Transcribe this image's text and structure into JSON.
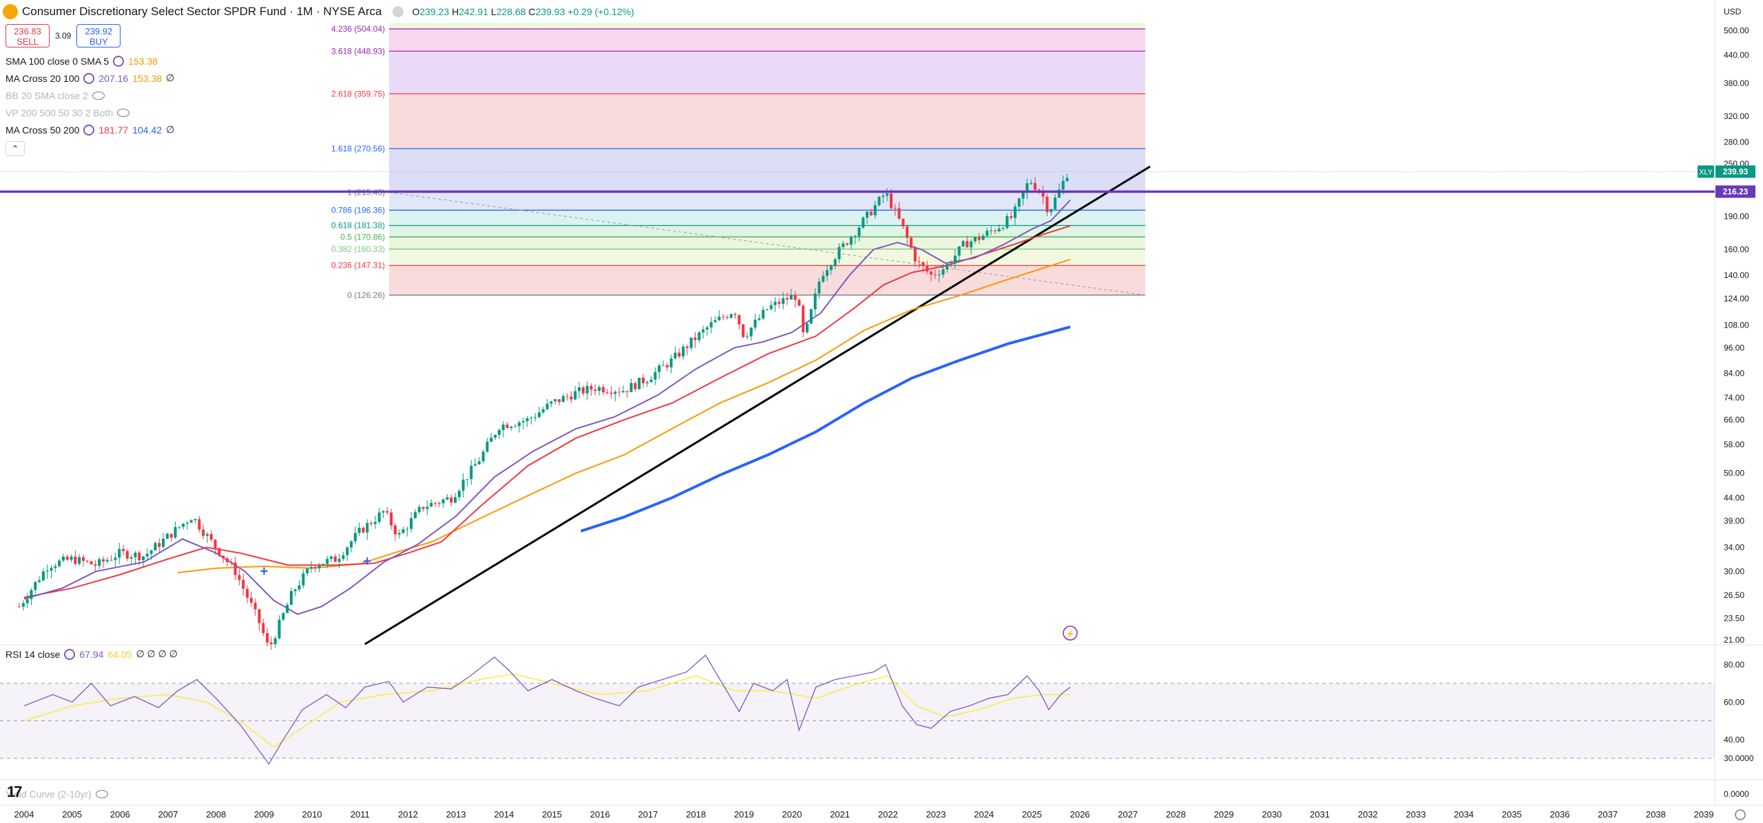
{
  "header": {
    "title": "Consumer Discretionary Select Sector SPDR Fund · 1M · NYSE Arca",
    "ohlc": [
      {
        "k": "O",
        "v": "239.23"
      },
      {
        "k": "H",
        "v": "242.91"
      },
      {
        "k": "L",
        "v": "228.68"
      },
      {
        "k": "C",
        "v": "239.93"
      }
    ],
    "change": "+0.29 (+0.12%)"
  },
  "trade": {
    "sell_price": "236.83",
    "sell_label": "SELL",
    "spread": "3.09",
    "buy_price": "239.92",
    "buy_label": "BUY"
  },
  "indicators": [
    {
      "name": "SMA 100 close 0 SMA 5",
      "values": [
        "153.38"
      ],
      "colors": [
        "#ff9800"
      ],
      "hidden": false,
      "icon": "settings-icon"
    },
    {
      "name": "MA Cross 20 100",
      "values": [
        "207.16",
        "153.38"
      ],
      "colors": [
        "#7e57c2",
        "#ff9800"
      ],
      "extra": "∅",
      "hidden": false,
      "icon": "settings-icon"
    },
    {
      "name": "BB 20 SMA close 2",
      "values": [],
      "hidden": true,
      "icon": "eye-off-icon"
    },
    {
      "name": "VP 200 500 50 30 2 Both",
      "values": [],
      "hidden": true,
      "icon": "eye-off-icon"
    },
    {
      "name": "MA Cross 50 200",
      "values": [
        "181.77",
        "104.42"
      ],
      "colors": [
        "#f23645",
        "#2962ff"
      ],
      "extra": "∅",
      "hidden": false,
      "icon": "settings-icon"
    }
  ],
  "collapse_icon": "chevron-up-icon",
  "price_axis": {
    "currency": "USD",
    "labels": [
      "500.00",
      "440.00",
      "380.00",
      "320.00",
      "280.00",
      "250.00",
      "190.00",
      "160.00",
      "140.00",
      "124.00",
      "108.00",
      "96.00",
      "84.00",
      "74.00",
      "66.00",
      "58.00",
      "50.00",
      "44.00",
      "39.00",
      "34.00",
      "30.00",
      "26.50",
      "23.50",
      "21.00"
    ],
    "symbol_badge": "XLY",
    "last_price": "239.93",
    "hline_price": "216.23"
  },
  "fib_levels": [
    {
      "ratio": "4.236",
      "label": "4.236 (504.04)",
      "color": "#9c27b0"
    },
    {
      "ratio": "3.618",
      "label": "3.618 (448.93)",
      "color": "#9c27b0"
    },
    {
      "ratio": "2.618",
      "label": "2.618 (359.75)",
      "color": "#f23645"
    },
    {
      "ratio": "1.618",
      "label": "1.618 (270.56)",
      "color": "#2962ff"
    },
    {
      "ratio": "1",
      "label": "1 (215.43)",
      "color": "#787b86"
    },
    {
      "ratio": "0.786",
      "label": "0.786 (196.36)",
      "color": "#2962ff"
    },
    {
      "ratio": "0.618",
      "label": "0.618 (181.38)",
      "color": "#089981"
    },
    {
      "ratio": "0.5",
      "label": "0.5 (170.86)",
      "color": "#4caf50"
    },
    {
      "ratio": "0.382",
      "label": "0.382 (160.33)",
      "color": "#81c784"
    },
    {
      "ratio": "0.236",
      "label": "0.236 (147.31)",
      "color": "#f23645"
    },
    {
      "ratio": "0",
      "label": "0 (126.26)",
      "color": "#787b86"
    }
  ],
  "rsi": {
    "label": "RSI 14 close",
    "value": "67.94",
    "ma": "64.05",
    "extra": "∅ ∅ ∅ ∅",
    "axis": [
      "80.00",
      "60.00",
      "40.00",
      "30.0000"
    ],
    "line_color": "#7e57c2",
    "ma_color": "#ffeb3b"
  },
  "yield_curve": {
    "label": "Yield Curve (2-10yr)",
    "axis": "0.0000"
  },
  "x_axis": {
    "years": [
      "2004",
      "2005",
      "2006",
      "2007",
      "2008",
      "2009",
      "2010",
      "2011",
      "2012",
      "2013",
      "2014",
      "2015",
      "2016",
      "2017",
      "2018",
      "2019",
      "2020",
      "2021",
      "2022",
      "2023",
      "2024",
      "2025",
      "2026",
      "2027",
      "2028",
      "2029",
      "2030",
      "2031",
      "2032",
      "2033",
      "2034",
      "2035",
      "2036",
      "2037",
      "2038",
      "2039"
    ]
  },
  "colors": {
    "up": "#089981",
    "down": "#f23645",
    "ma20": "#7e57c2",
    "ma50": "#f23645",
    "ma100": "#ff9800",
    "ma200": "#2962ff",
    "hline": "#673ab7",
    "trendline": "#000000"
  },
  "misc": {
    "alert_icon": "lightning-icon",
    "settings_icon": "gear-icon",
    "logo": "tv-logo"
  }
}
